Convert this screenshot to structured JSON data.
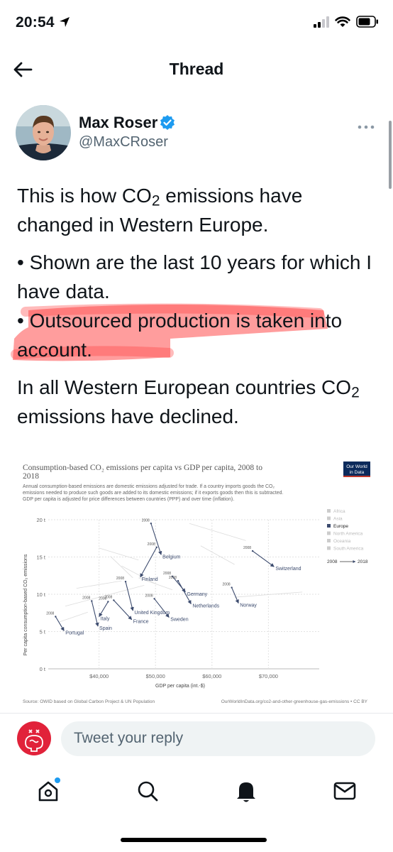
{
  "status": {
    "time": "20:54"
  },
  "header": {
    "title": "Thread"
  },
  "author": {
    "name": "Max Roser",
    "handle": "@MaxCRoser"
  },
  "tweet": {
    "p1_a": "This is how CO",
    "p1_sub": "2",
    "p1_b": " emissions have changed in Western Europe.",
    "p2": "• Shown are the last 10 years for which I have data.",
    "p3": "• Outsourced production is taken into account.",
    "p4_a": "In all Western European countries CO",
    "p4_sub": "2",
    "p4_b": " emissions have declined."
  },
  "chart": {
    "brand": [
      "Our World",
      "in Data"
    ],
    "title_line1": "Consumption-based CO₂ emissions per capita vs GDP per capita, 2008 to",
    "title_line2": "2018",
    "subtitle": [
      "Annual consumption-based emissions are domestic emissions adjusted for trade. If a country imports goods the CO₂",
      "emissions needed to produce such goods are added to its domestic emissions; if it exports goods then this is subtracted.",
      "GDP per capita is adjusted for price differences between countries (PPP) and over time (inflation)."
    ],
    "source": "Source: OWID based on Global Carbon Project & UN Population",
    "url": "OurWorldInData.org/co2-and-other-greenhouse-gas-emissions • CC BY"
  },
  "chart_data": {
    "type": "scatter",
    "title": "Consumption-based CO₂ emissions per capita vs GDP per capita, 2008 to 2018",
    "xlabel": "GDP per capita (int.-$)",
    "ylabel": "Per capita consumption-based CO₂ emissions",
    "xlim": [
      31000,
      79000
    ],
    "ylim": [
      0,
      20
    ],
    "x_ticks": [
      40000,
      50000,
      60000,
      70000
    ],
    "x_tick_labels": [
      "$40,000",
      "$50,000",
      "$60,000",
      "$70,000"
    ],
    "y_ticks": [
      0,
      5,
      10,
      15,
      20
    ],
    "y_tick_labels": [
      "0 t",
      "5 t",
      "10 t",
      "15 t",
      "20 t"
    ],
    "grid": true,
    "legend": [
      "Africa",
      "Asia",
      "Europe",
      "North America",
      "Oceania",
      "South America"
    ],
    "legend_active": "Europe",
    "legend_colors": [
      "#cccccc",
      "#cccccc",
      "#3c4b6e",
      "#cccccc",
      "#cccccc",
      "#cccccc"
    ],
    "year_start_label": "2008",
    "year_end_label": "2018",
    "arrow_color": "#3c4b6e",
    "series": [
      {
        "name": "Belgium",
        "x2008": 49200,
        "y2008": 19.5,
        "x2018": 51000,
        "y2018": 15.3
      },
      {
        "name": "Switzerland",
        "x2008": 67200,
        "y2008": 15.8,
        "x2018": 71000,
        "y2018": 13.7
      },
      {
        "name": "Finland",
        "x2008": 50200,
        "y2008": 16.3,
        "x2018": 47300,
        "y2018": 12.3
      },
      {
        "name": "Germany",
        "x2008": 53000,
        "y2008": 12.4,
        "x2018": 55300,
        "y2018": 10.3
      },
      {
        "name": "Netherlands",
        "x2008": 54000,
        "y2008": 11.8,
        "x2018": 56300,
        "y2018": 8.7
      },
      {
        "name": "Norway",
        "x2008": 63500,
        "y2008": 10.9,
        "x2018": 64700,
        "y2018": 8.8
      },
      {
        "name": "United Kingdom",
        "x2008": 44700,
        "y2008": 11.7,
        "x2018": 46000,
        "y2018": 7.8
      },
      {
        "name": "Sweden",
        "x2008": 49800,
        "y2008": 9.4,
        "x2018": 52400,
        "y2018": 6.9
      },
      {
        "name": "France",
        "x2008": 42600,
        "y2008": 9.2,
        "x2018": 45800,
        "y2018": 6.6
      },
      {
        "name": "Italy",
        "x2008": 41600,
        "y2008": 9.0,
        "x2018": 40000,
        "y2018": 7.0
      },
      {
        "name": "Spain",
        "x2008": 38700,
        "y2008": 9.1,
        "x2018": 39800,
        "y2018": 5.7
      },
      {
        "name": "Portugal",
        "x2008": 32300,
        "y2008": 7.0,
        "x2018": 33800,
        "y2018": 5.1
      }
    ]
  },
  "reply": {
    "placeholder": "Tweet your reply"
  },
  "tabs": {
    "labels": [
      "home-icon",
      "search-icon",
      "notifications-icon",
      "messages-icon"
    ]
  }
}
